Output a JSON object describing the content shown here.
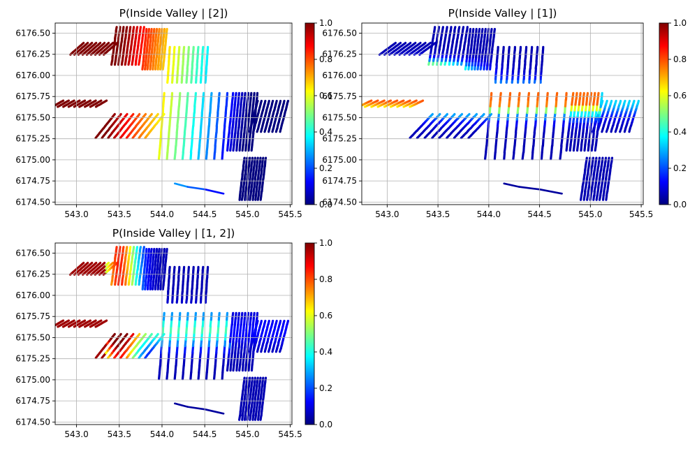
{
  "chart_data": [
    {
      "type": "scatter",
      "title": "P(Inside Valley  | [2])",
      "xlim": [
        542.75,
        545.52
      ],
      "ylim": [
        6174.47,
        6176.62
      ],
      "xticks": [
        "543.0",
        "543.5",
        "544.0",
        "544.5",
        "545.0",
        "545.5"
      ],
      "yticks": [
        "6174.50",
        "6174.75",
        "6175.00",
        "6175.25",
        "6175.50",
        "6175.75",
        "6176.00",
        "6176.25",
        "6176.50"
      ],
      "grid": true,
      "colormap": "jet",
      "colorbar": {
        "range": [
          0,
          1
        ],
        "ticks": [
          "0.0",
          "0.2",
          "0.4",
          "0.6",
          "0.8",
          "1.0"
        ]
      }
    },
    {
      "type": "scatter",
      "title": "P(Inside Valley  | [1])",
      "xlim": [
        542.75,
        545.52
      ],
      "ylim": [
        6174.47,
        6176.62
      ],
      "xticks": [
        "543.0",
        "543.5",
        "544.0",
        "544.5",
        "545.0",
        "545.5"
      ],
      "yticks": [
        "6174.50",
        "6174.75",
        "6175.00",
        "6175.25",
        "6175.50",
        "6175.75",
        "6176.00",
        "6176.25",
        "6176.50"
      ],
      "grid": true,
      "colormap": "jet",
      "colorbar": {
        "range": [
          0,
          1
        ],
        "ticks": [
          "0.0",
          "0.2",
          "0.4",
          "0.6",
          "0.8",
          "1.0"
        ]
      }
    },
    {
      "type": "scatter",
      "title": "P(Inside Valley  | [1, 2])",
      "xlim": [
        542.75,
        545.52
      ],
      "ylim": [
        6174.47,
        6176.62
      ],
      "xticks": [
        "543.0",
        "543.5",
        "544.0",
        "544.5",
        "545.0",
        "545.5"
      ],
      "yticks": [
        "6174.50",
        "6174.75",
        "6175.00",
        "6175.25",
        "6175.50",
        "6175.75",
        "6176.00",
        "6176.25",
        "6176.50"
      ],
      "grid": true,
      "colormap": "jet",
      "colorbar": {
        "range": [
          0,
          1
        ],
        "ticks": [
          "0.0",
          "0.2",
          "0.4",
          "0.6",
          "0.8",
          "1.0"
        ]
      }
    }
  ],
  "colors": {
    "jet_stops": [
      "#00007f",
      "#0000ff",
      "#007fff",
      "#00ffff",
      "#7fff7f",
      "#ffff00",
      "#ff7f00",
      "#ff0000",
      "#7f0000"
    ],
    "grid": "#b0b0b0"
  }
}
